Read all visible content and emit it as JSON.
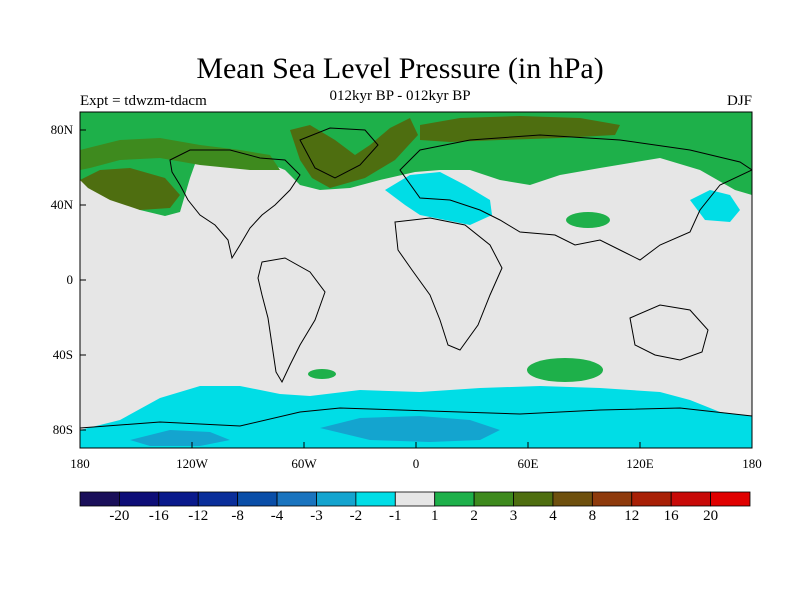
{
  "header": {
    "title": "Mean Sea Level Pressure (in hPa)",
    "subtitle": "012kyr BP - 012kyr BP",
    "expt": "Expt = tdwzm-tdacm",
    "season": "DJF"
  },
  "axes": {
    "lat_labels": [
      "80N",
      "40N",
      "0",
      "40S",
      "80S"
    ],
    "lon_labels": [
      "180",
      "120W",
      "60W",
      "0",
      "60E",
      "120E",
      "180"
    ]
  },
  "colorbar": {
    "labels": [
      "-20",
      "-16",
      "-12",
      "-8",
      "-4",
      "-3",
      "-2",
      "-1",
      "1",
      "2",
      "3",
      "4",
      "8",
      "12",
      "16",
      "20"
    ],
    "colors": [
      "#1a0f5a",
      "#0e0e78",
      "#0a1a8c",
      "#0a2e9a",
      "#0a4ea8",
      "#1a74bf",
      "#14a4cf",
      "#00dde6",
      "#e6e6e6",
      "#1eb04a",
      "#3e8a1e",
      "#4e6e10",
      "#6e500e",
      "#8e3a0c",
      "#a82006",
      "#c80a08",
      "#e00000"
    ]
  },
  "colors": {
    "neutral": "#e6e6e6",
    "pos_light": "#1eb04a",
    "pos_mid": "#3e8a1e",
    "pos_dark": "#4e6e10",
    "neg_light": "#00dde6",
    "neg_mid": "#14a4cf"
  }
}
